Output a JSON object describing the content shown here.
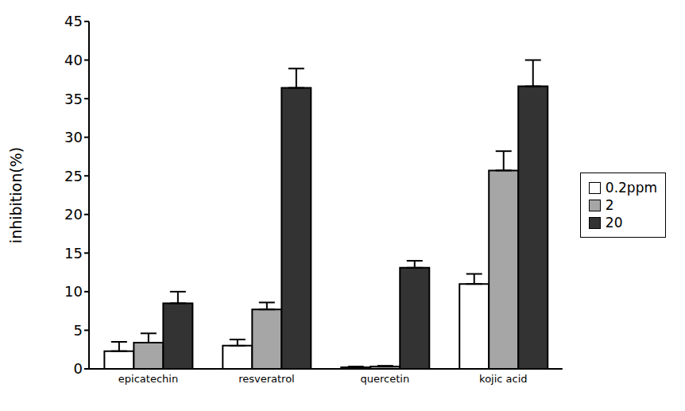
{
  "chart_data": {
    "type": "bar",
    "y_label": "inhibition(%)",
    "categories": [
      "epicatechin",
      "resveratrol",
      "quercetin",
      "kojic acid"
    ],
    "series": [
      {
        "name": "0.2ppm",
        "color": "#ffffff",
        "values": [
          2.3,
          3.0,
          0.2,
          11.0
        ],
        "errors": [
          1.2,
          0.8,
          0.1,
          1.3
        ]
      },
      {
        "name": "2",
        "color": "#a6a6a6",
        "values": [
          3.4,
          7.7,
          0.3,
          25.7
        ],
        "errors": [
          1.2,
          0.9,
          0.1,
          2.5
        ]
      },
      {
        "name": "20",
        "color": "#333333",
        "values": [
          8.5,
          36.4,
          13.1,
          36.6
        ],
        "errors": [
          1.5,
          2.5,
          0.9,
          3.4
        ]
      }
    ],
    "ylim": [
      0,
      45
    ],
    "yticks": [
      0,
      5,
      10,
      15,
      20,
      25,
      30,
      35,
      40,
      45
    ],
    "grid": false,
    "legend": "right"
  }
}
